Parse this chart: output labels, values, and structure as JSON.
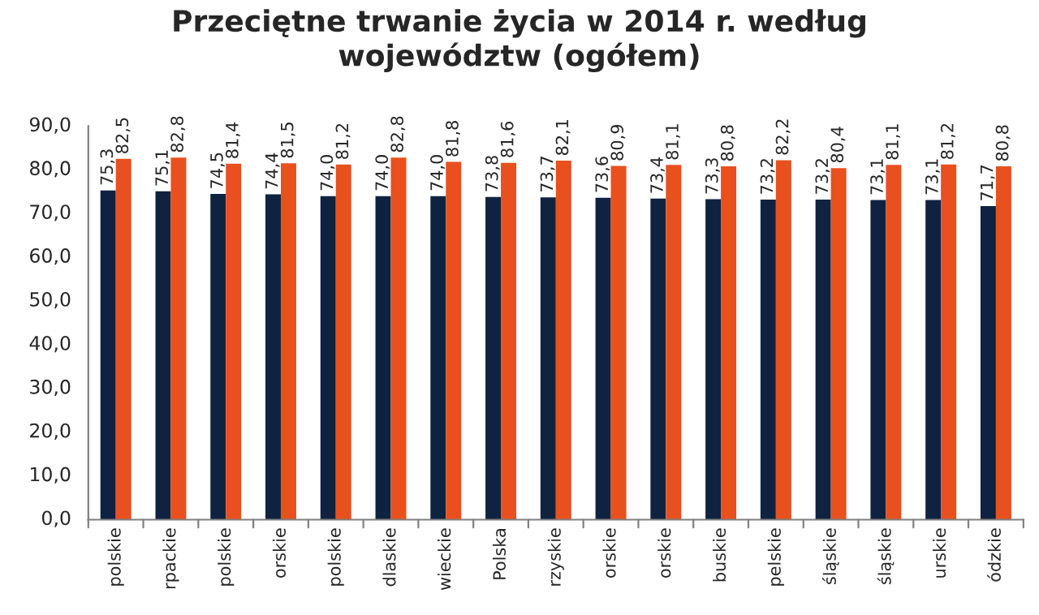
{
  "chart_data": {
    "type": "bar",
    "title": "Przeciętne trwanie życia w 2014 r. według\nwojewództw (ogółem)",
    "categories": [
      "polskie",
      "rpackie",
      "polskie",
      "orskie",
      "polskie",
      "dlaskie",
      "wieckie",
      "Polska",
      "rzyskie",
      "orskie",
      "orskie",
      "buskie",
      "pelskie",
      "śląskie",
      "śląskie",
      "urskie",
      "ódzkie"
    ],
    "series": [
      {
        "color": "#0f2340",
        "values": [
          75.3,
          75.1,
          74.5,
          74.4,
          74.0,
          74.0,
          74.0,
          73.8,
          73.7,
          73.6,
          73.4,
          73.3,
          73.2,
          73.2,
          73.1,
          73.1,
          71.7
        ],
        "value_labels": [
          "75,3",
          "75,1",
          "74,5",
          "74,4",
          "74,0",
          "74,0",
          "74,0",
          "73,8",
          "73,7",
          "73,6",
          "73,4",
          "73,3",
          "73,2",
          "73,2",
          "73,1",
          "73,1",
          "71,7"
        ]
      },
      {
        "color": "#e8501e",
        "values": [
          82.5,
          82.8,
          81.4,
          81.5,
          81.2,
          82.8,
          81.8,
          81.6,
          82.1,
          80.9,
          81.1,
          80.8,
          82.2,
          80.4,
          81.1,
          81.2,
          80.8
        ],
        "value_labels": [
          "82,5",
          "82,8",
          "81,4",
          "81,5",
          "81,2",
          "82,8",
          "81,8",
          "81,6",
          "82,1",
          "80,9",
          "81,1",
          "80,8",
          "82,2",
          "80,4",
          "81,1",
          "81,2",
          "80,8"
        ]
      }
    ],
    "ylim": [
      0,
      90
    ],
    "yticks": [
      {
        "value": 0,
        "label": "0,0"
      },
      {
        "value": 10,
        "label": "10,0"
      },
      {
        "value": 20,
        "label": "20,0"
      },
      {
        "value": 30,
        "label": "30,0"
      },
      {
        "value": 40,
        "label": "40,0"
      },
      {
        "value": 50,
        "label": "50,0"
      },
      {
        "value": 60,
        "label": "60,0"
      },
      {
        "value": 70,
        "label": "70,0"
      },
      {
        "value": 80,
        "label": "80,0"
      },
      {
        "value": 90,
        "label": "90,0"
      }
    ],
    "grid": false,
    "legend": false
  }
}
